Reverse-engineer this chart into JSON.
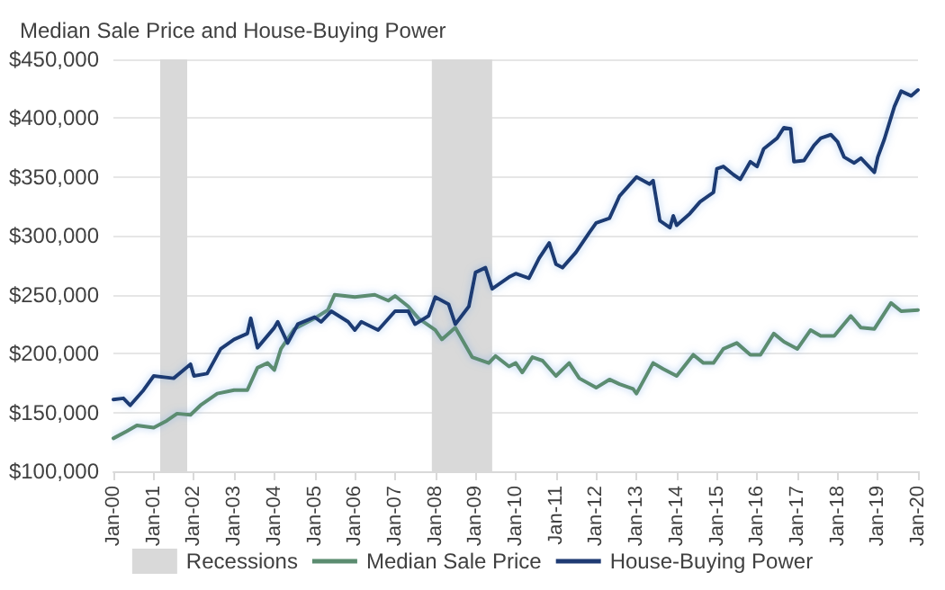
{
  "chart_data": {
    "type": "line",
    "title": "Median Sale Price and House-Buying Power",
    "xlim": [
      "2000-01",
      "2020-01"
    ],
    "xticks": [
      {
        "value": "2000-01",
        "label": "Jan-00"
      },
      {
        "value": "2001-01",
        "label": "Jan-01"
      },
      {
        "value": "2002-01",
        "label": "Jan-02"
      },
      {
        "value": "2003-01",
        "label": "Jan-03"
      },
      {
        "value": "2004-01",
        "label": "Jan-04"
      },
      {
        "value": "2005-01",
        "label": "Jan-05"
      },
      {
        "value": "2006-01",
        "label": "Jan-06"
      },
      {
        "value": "2007-01",
        "label": "Jan-07"
      },
      {
        "value": "2008-01",
        "label": "Jan-08"
      },
      {
        "value": "2009-01",
        "label": "Jan-09"
      },
      {
        "value": "2010-01",
        "label": "Jan-10"
      },
      {
        "value": "2011-01",
        "label": "Jan-11"
      },
      {
        "value": "2012-01",
        "label": "Jan-12"
      },
      {
        "value": "2013-01",
        "label": "Jan-13"
      },
      {
        "value": "2014-01",
        "label": "Jan-14"
      },
      {
        "value": "2015-01",
        "label": "Jan-15"
      },
      {
        "value": "2016-01",
        "label": "Jan-16"
      },
      {
        "value": "2017-01",
        "label": "Jan-17"
      },
      {
        "value": "2018-01",
        "label": "Jan-18"
      },
      {
        "value": "2019-01",
        "label": "Jan-19"
      },
      {
        "value": "2020-01",
        "label": "Jan-20"
      }
    ],
    "ylim": [
      100000,
      450000
    ],
    "yticks": [
      {
        "value": 100000,
        "label": "$100,000"
      },
      {
        "value": 150000,
        "label": "$150,000"
      },
      {
        "value": 200000,
        "label": "$200,000"
      },
      {
        "value": 250000,
        "label": "$250,000"
      },
      {
        "value": 300000,
        "label": "$300,000"
      },
      {
        "value": 350000,
        "label": "$350,000"
      },
      {
        "value": 400000,
        "label": "$400,000"
      },
      {
        "value": 450000,
        "label": "$450,000"
      }
    ],
    "grid": "y",
    "legend": "bottom",
    "marker": "none",
    "line_style": "solid",
    "bands": [
      {
        "axis": "x",
        "from": "2001-03",
        "to": "2001-11",
        "label": "Recessions",
        "color": "#d9d9d9"
      },
      {
        "axis": "x",
        "from": "2007-12",
        "to": "2009-06",
        "color": "#d9d9d9"
      }
    ],
    "series": [
      {
        "name": "Median Sale Price",
        "color": "#5b8c70",
        "x": [
          "2000-01",
          "2000-05",
          "2000-08",
          "2001-01",
          "2001-05",
          "2001-08",
          "2001-12",
          "2002-03",
          "2002-08",
          "2003-01",
          "2003-05",
          "2003-08",
          "2003-11",
          "2004-01",
          "2004-03",
          "2004-07",
          "2005-01",
          "2005-05",
          "2005-07",
          "2006-01",
          "2006-07",
          "2006-11",
          "2007-01",
          "2007-05",
          "2007-08",
          "2008-01",
          "2008-03",
          "2008-07",
          "2008-12",
          "2009-05",
          "2009-07",
          "2009-11",
          "2010-01",
          "2010-03",
          "2010-06",
          "2010-09",
          "2011-01",
          "2011-05",
          "2011-08",
          "2012-01",
          "2012-05",
          "2012-08",
          "2012-12",
          "2013-01",
          "2013-06",
          "2013-09",
          "2014-01",
          "2014-06",
          "2014-09",
          "2014-12",
          "2015-03",
          "2015-07",
          "2015-11",
          "2016-02",
          "2016-06",
          "2016-09",
          "2017-01",
          "2017-05",
          "2017-08",
          "2017-12",
          "2018-05",
          "2018-08",
          "2018-12",
          "2019-05",
          "2019-08",
          "2020-01"
        ],
        "values": [
          128000,
          134000,
          139000,
          137000,
          143000,
          149000,
          148000,
          156000,
          166000,
          169000,
          169000,
          188000,
          192000,
          186000,
          204000,
          221000,
          230000,
          237000,
          250000,
          248000,
          250000,
          245000,
          249000,
          240000,
          230000,
          220000,
          212000,
          222000,
          197000,
          192000,
          198000,
          189000,
          192000,
          184000,
          197000,
          194000,
          181000,
          192000,
          179000,
          171000,
          178000,
          174000,
          170000,
          166000,
          192000,
          187000,
          181000,
          199000,
          192000,
          192000,
          204000,
          209000,
          199000,
          199000,
          217000,
          210000,
          204000,
          220000,
          215000,
          215000,
          232000,
          222000,
          221000,
          243000,
          236000,
          237000
        ]
      },
      {
        "name": "House-Buying Power",
        "color": "#1f3b73",
        "x": [
          "2000-01",
          "2000-04",
          "2000-06",
          "2000-10",
          "2001-01",
          "2001-07",
          "2001-12",
          "2002-01",
          "2002-05",
          "2002-09",
          "2003-01",
          "2003-05",
          "2003-06",
          "2003-08",
          "2004-01",
          "2004-02",
          "2004-05",
          "2004-08",
          "2005-01",
          "2005-03",
          "2005-06",
          "2005-11",
          "2006-01",
          "2006-03",
          "2006-08",
          "2007-01",
          "2007-05",
          "2007-07",
          "2007-11",
          "2008-01",
          "2008-05",
          "2008-07",
          "2008-11",
          "2009-01",
          "2009-04",
          "2009-06",
          "2009-11",
          "2010-01",
          "2010-05",
          "2010-08",
          "2010-11",
          "2011-01",
          "2011-03",
          "2011-07",
          "2011-11",
          "2012-01",
          "2012-05",
          "2012-08",
          "2013-01",
          "2013-05",
          "2013-06",
          "2013-08",
          "2013-11",
          "2013-12",
          "2014-01",
          "2014-05",
          "2014-08",
          "2014-12",
          "2015-01",
          "2015-03",
          "2015-06",
          "2015-08",
          "2015-11",
          "2016-01",
          "2016-03",
          "2016-07",
          "2016-09",
          "2016-11",
          "2016-12",
          "2017-03",
          "2017-06",
          "2017-08",
          "2017-11",
          "2018-01",
          "2018-03",
          "2018-06",
          "2018-08",
          "2018-12",
          "2019-01",
          "2019-03",
          "2019-06",
          "2019-08",
          "2019-11",
          "2020-01"
        ],
        "values": [
          161000,
          162000,
          156000,
          169000,
          181000,
          179000,
          191000,
          181000,
          183000,
          204000,
          212000,
          217000,
          230000,
          205000,
          222000,
          227000,
          209000,
          225000,
          231000,
          227000,
          236000,
          227000,
          220000,
          227000,
          220000,
          236000,
          236000,
          225000,
          232000,
          248000,
          242000,
          225000,
          240000,
          269000,
          273000,
          255000,
          265000,
          268000,
          264000,
          281000,
          294000,
          276000,
          273000,
          286000,
          303000,
          311000,
          315000,
          334000,
          350000,
          344000,
          347000,
          313000,
          307000,
          317000,
          309000,
          319000,
          329000,
          337000,
          357000,
          359000,
          352000,
          348000,
          363000,
          359000,
          374000,
          383000,
          392000,
          391000,
          363000,
          364000,
          377000,
          383000,
          386000,
          380000,
          367000,
          362000,
          366000,
          354000,
          367000,
          382000,
          410000,
          423000,
          419000,
          424000
        ]
      }
    ]
  }
}
